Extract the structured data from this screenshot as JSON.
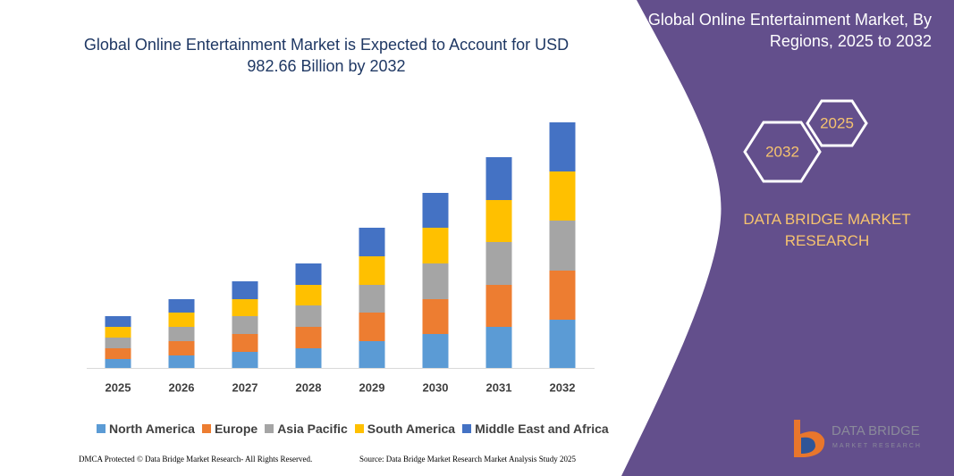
{
  "chart_data": {
    "type": "bar",
    "stacked": true,
    "title": "Global Online Entertainment Market is Expected to Account for USD 982.66 Billion by 2032",
    "categories": [
      "2025",
      "2026",
      "2027",
      "2028",
      "2029",
      "2030",
      "2031",
      "2032"
    ],
    "series": [
      {
        "name": "North America",
        "color": "#5b9bd5",
        "values": [
          10,
          14,
          18,
          22,
          30,
          38,
          46,
          54
        ]
      },
      {
        "name": "Europe",
        "color": "#ed7d31",
        "values": [
          12,
          16,
          20,
          24,
          32,
          39,
          47,
          55
        ]
      },
      {
        "name": "Asia Pacific",
        "color": "#a5a5a5",
        "values": [
          12,
          16,
          20,
          24,
          31,
          40,
          48,
          56
        ]
      },
      {
        "name": "South America",
        "color": "#ffc000",
        "values": [
          12,
          16,
          19,
          23,
          32,
          40,
          47,
          55
        ]
      },
      {
        "name": "Middle East and Africa",
        "color": "#4472c4",
        "values": [
          12,
          15,
          20,
          24,
          32,
          39,
          48,
          55
        ]
      }
    ]
  },
  "panel": {
    "title": "Global Online Entertainment Market, By Regions, 2025 to 2032",
    "hexagons": [
      "2025",
      "2032"
    ],
    "brand": "DATA BRIDGE MARKET RESEARCH",
    "logo": {
      "name": "DATA BRIDGE",
      "tagline": "MARKET RESEARCH"
    }
  },
  "footer": {
    "left": "DMCA Protected © Data Bridge Market Research- All Rights Reserved.",
    "right": "Source: Data Bridge Market Research Market Analysis Study 2025"
  }
}
